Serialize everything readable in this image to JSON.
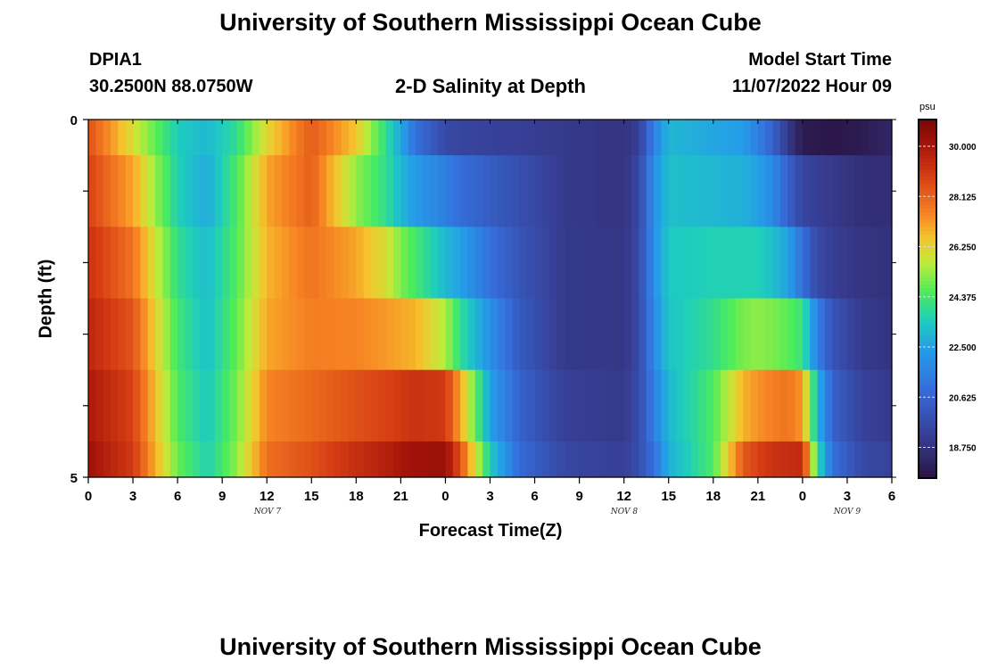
{
  "page": {
    "title_top": "University of Southern Mississippi Ocean Cube",
    "title_bottom": "University of Southern Mississippi Ocean Cube",
    "station_id": "DPIA1",
    "station_coords": "30.2500N  88.0750W",
    "model_start_label": "Model Start Time",
    "model_start_value": "11/07/2022 Hour 09"
  },
  "chart_data": {
    "type": "heatmap",
    "title": "2-D Salinity at Depth",
    "xlabel": "Forecast Time(Z)",
    "ylabel": "Depth (ft)",
    "unit": "psu",
    "x_tick_labels": [
      "0",
      "3",
      "6",
      "9",
      "12",
      "15",
      "18",
      "21",
      "0",
      "3",
      "6",
      "9",
      "12",
      "15",
      "18",
      "21",
      "0",
      "3",
      "6"
    ],
    "x_range_hours": [
      0,
      54
    ],
    "date_labels": [
      {
        "text": "NOV 7",
        "at_hour": 12
      },
      {
        "text": "NOV 8",
        "at_hour": 36
      },
      {
        "text": "NOV 9",
        "at_hour": 51
      }
    ],
    "y_tick_labels": [
      "0",
      "5"
    ],
    "y_range": [
      0,
      5
    ],
    "colorbar_ticks": [
      "30.000",
      "28.125",
      "26.250",
      "24.375",
      "22.500",
      "20.625",
      "18.750"
    ],
    "colorbar_range": [
      17.6,
      31.0
    ],
    "depth_layers": [
      0.25,
      1.0,
      2.0,
      3.0,
      4.0,
      4.75
    ],
    "salinity_keyframes": [
      {
        "hour": 0,
        "layers": [
          28.5,
          28.8,
          29.2,
          29.5,
          29.9,
          30.2
        ]
      },
      {
        "hour": 3,
        "layers": [
          26.0,
          27.0,
          27.8,
          28.4,
          28.8,
          29.0
        ]
      },
      {
        "hour": 6,
        "layers": [
          23.5,
          23.6,
          24.0,
          24.3,
          24.5,
          24.8
        ]
      },
      {
        "hour": 8,
        "layers": [
          23.0,
          22.7,
          23.1,
          23.2,
          23.4,
          23.6
        ]
      },
      {
        "hour": 10,
        "layers": [
          24.0,
          24.5,
          24.6,
          24.8,
          25.0,
          25.2
        ]
      },
      {
        "hour": 12,
        "layers": [
          26.2,
          27.0,
          26.8,
          27.0,
          27.5,
          27.9
        ]
      },
      {
        "hour": 15,
        "layers": [
          28.3,
          28.2,
          27.8,
          27.6,
          28.0,
          28.5
        ]
      },
      {
        "hour": 18,
        "layers": [
          26.5,
          25.2,
          27.0,
          27.5,
          28.5,
          29.3
        ]
      },
      {
        "hour": 20,
        "layers": [
          24.0,
          24.0,
          26.0,
          27.2,
          28.8,
          29.7
        ]
      },
      {
        "hour": 21,
        "layers": [
          22.6,
          23.0,
          25.0,
          27.0,
          29.0,
          30.0
        ]
      },
      {
        "hour": 22,
        "layers": [
          21.0,
          22.3,
          24.4,
          26.8,
          29.2,
          30.2
        ]
      },
      {
        "hour": 24,
        "layers": [
          19.6,
          21.5,
          23.0,
          25.5,
          29.0,
          30.3
        ]
      },
      {
        "hour": 25,
        "layers": [
          19.4,
          20.9,
          22.5,
          24.0,
          27.0,
          28.5
        ]
      },
      {
        "hour": 27,
        "layers": [
          19.3,
          20.3,
          21.0,
          22.0,
          22.5,
          23.5
        ]
      },
      {
        "hour": 29,
        "layers": [
          19.2,
          19.8,
          20.0,
          20.2,
          20.5,
          20.8
        ]
      },
      {
        "hour": 32,
        "layers": [
          19.0,
          19.0,
          19.0,
          19.0,
          19.2,
          19.5
        ]
      },
      {
        "hour": 36,
        "layers": [
          18.8,
          18.8,
          18.9,
          18.9,
          19.0,
          19.2
        ]
      },
      {
        "hour": 37,
        "layers": [
          19.2,
          19.5,
          19.6,
          19.6,
          19.7,
          19.8
        ]
      },
      {
        "hour": 38,
        "layers": [
          21.5,
          22.0,
          22.0,
          21.8,
          21.5,
          21.0
        ]
      },
      {
        "hour": 39,
        "layers": [
          23.0,
          23.2,
          23.4,
          23.3,
          23.0,
          22.8
        ]
      },
      {
        "hour": 42,
        "layers": [
          22.6,
          23.0,
          23.6,
          24.0,
          24.5,
          24.5
        ]
      },
      {
        "hour": 44,
        "layers": [
          22.4,
          22.8,
          23.6,
          25.0,
          26.8,
          28.3
        ]
      },
      {
        "hour": 45,
        "layers": [
          21.5,
          22.5,
          23.6,
          25.2,
          27.3,
          28.8
        ]
      },
      {
        "hour": 46,
        "layers": [
          20.5,
          21.8,
          23.2,
          25.0,
          27.6,
          29.2
        ]
      },
      {
        "hour": 47,
        "layers": [
          19.0,
          20.5,
          22.5,
          24.7,
          27.8,
          29.3
        ]
      },
      {
        "hour": 48,
        "layers": [
          17.9,
          19.4,
          21.0,
          24.2,
          27.2,
          29.4
        ]
      },
      {
        "hour": 49,
        "layers": [
          17.8,
          19.2,
          19.6,
          21.5,
          23.0,
          24.0
        ]
      },
      {
        "hour": 50,
        "layers": [
          17.7,
          19.0,
          19.2,
          20.0,
          20.5,
          21.0
        ]
      },
      {
        "hour": 52,
        "layers": [
          17.9,
          18.6,
          18.8,
          19.0,
          19.3,
          19.6
        ]
      },
      {
        "hour": 54,
        "layers": [
          18.3,
          18.6,
          18.7,
          18.8,
          19.0,
          19.3
        ]
      }
    ]
  }
}
